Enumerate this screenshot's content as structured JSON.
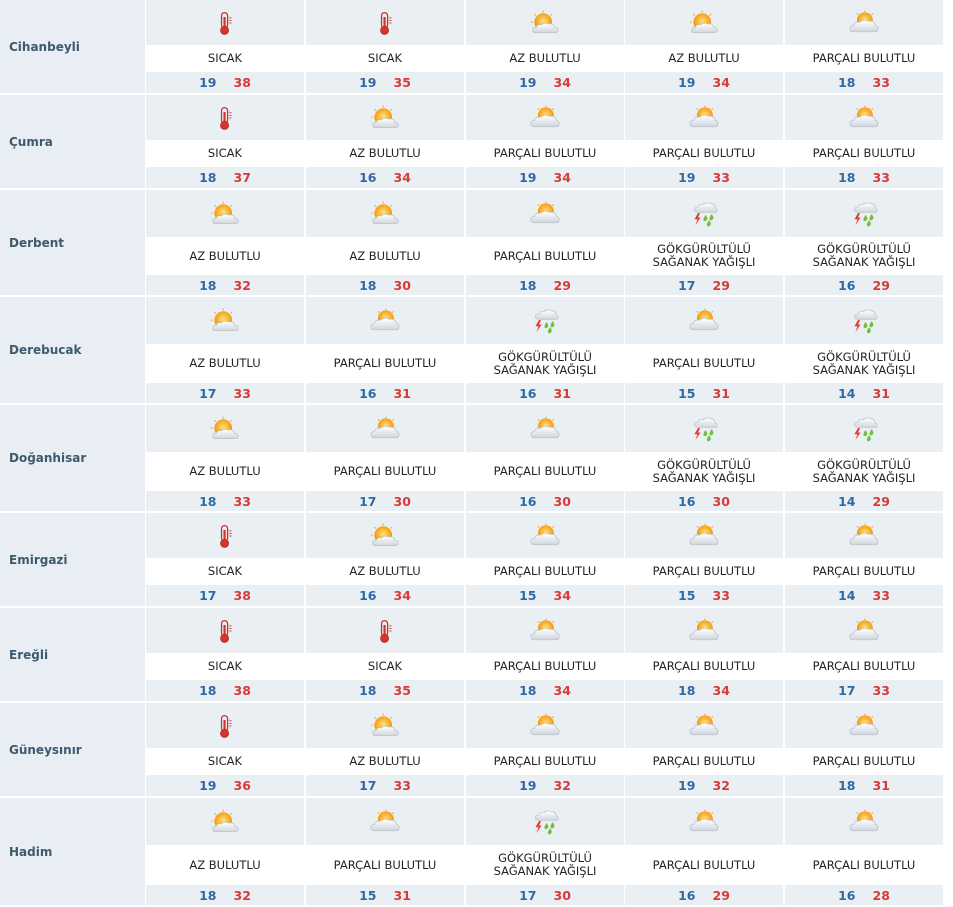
{
  "colors": {
    "cell_bg": "#eaeff3",
    "min_temp": "#2f6aa6",
    "max_temp": "#d63a3a",
    "city_text": "#3d5a6e"
  },
  "rows": [
    {
      "city": "Cihanbeyli",
      "days": [
        {
          "icon": "thermometer-hot-icon",
          "desc": "SICAK",
          "min": "19",
          "max": "38"
        },
        {
          "icon": "thermometer-hot-icon",
          "desc": "SICAK",
          "min": "19",
          "max": "35"
        },
        {
          "icon": "partly-sunny-icon",
          "desc": "AZ BULUTLU",
          "min": "19",
          "max": "34"
        },
        {
          "icon": "partly-sunny-icon",
          "desc": "AZ BULUTLU",
          "min": "19",
          "max": "34"
        },
        {
          "icon": "partly-cloudy-icon",
          "desc": "PARÇALI BULUTLU",
          "min": "18",
          "max": "33"
        }
      ]
    },
    {
      "city": "Çumra",
      "days": [
        {
          "icon": "thermometer-hot-icon",
          "desc": "SICAK",
          "min": "18",
          "max": "37"
        },
        {
          "icon": "partly-sunny-icon",
          "desc": "AZ BULUTLU",
          "min": "16",
          "max": "34"
        },
        {
          "icon": "partly-cloudy-icon",
          "desc": "PARÇALI BULUTLU",
          "min": "19",
          "max": "34"
        },
        {
          "icon": "partly-cloudy-icon",
          "desc": "PARÇALI BULUTLU",
          "min": "19",
          "max": "33"
        },
        {
          "icon": "partly-cloudy-icon",
          "desc": "PARÇALI BULUTLU",
          "min": "18",
          "max": "33"
        }
      ]
    },
    {
      "city": "Derbent",
      "days": [
        {
          "icon": "partly-sunny-icon",
          "desc": "AZ BULUTLU",
          "min": "18",
          "max": "32"
        },
        {
          "icon": "partly-sunny-icon",
          "desc": "AZ BULUTLU",
          "min": "18",
          "max": "30"
        },
        {
          "icon": "partly-cloudy-icon",
          "desc": "PARÇALI BULUTLU",
          "min": "18",
          "max": "29"
        },
        {
          "icon": "thunderstorm-icon",
          "desc": "GÖKGÜRÜLTÜLÜ SAĞANAK YAĞIŞLI",
          "min": "17",
          "max": "29"
        },
        {
          "icon": "thunderstorm-icon",
          "desc": "GÖKGÜRÜLTÜLÜ SAĞANAK YAĞIŞLI",
          "min": "16",
          "max": "29"
        }
      ]
    },
    {
      "city": "Derebucak",
      "days": [
        {
          "icon": "partly-sunny-icon",
          "desc": "AZ BULUTLU",
          "min": "17",
          "max": "33"
        },
        {
          "icon": "partly-cloudy-icon",
          "desc": "PARÇALI BULUTLU",
          "min": "16",
          "max": "31"
        },
        {
          "icon": "thunderstorm-icon",
          "desc": "GÖKGÜRÜLTÜLÜ SAĞANAK YAĞIŞLI",
          "min": "16",
          "max": "31"
        },
        {
          "icon": "partly-cloudy-icon",
          "desc": "PARÇALI BULUTLU",
          "min": "15",
          "max": "31"
        },
        {
          "icon": "thunderstorm-icon",
          "desc": "GÖKGÜRÜLTÜLÜ SAĞANAK YAĞIŞLI",
          "min": "14",
          "max": "31"
        }
      ]
    },
    {
      "city": "Doğanhisar",
      "days": [
        {
          "icon": "partly-sunny-icon",
          "desc": "AZ BULUTLU",
          "min": "18",
          "max": "33"
        },
        {
          "icon": "partly-cloudy-icon",
          "desc": "PARÇALI BULUTLU",
          "min": "17",
          "max": "30"
        },
        {
          "icon": "partly-cloudy-icon",
          "desc": "PARÇALI BULUTLU",
          "min": "16",
          "max": "30"
        },
        {
          "icon": "thunderstorm-icon",
          "desc": "GÖKGÜRÜLTÜLÜ SAĞANAK YAĞIŞLI",
          "min": "16",
          "max": "30"
        },
        {
          "icon": "thunderstorm-icon",
          "desc": "GÖKGÜRÜLTÜLÜ SAĞANAK YAĞIŞLI",
          "min": "14",
          "max": "29"
        }
      ]
    },
    {
      "city": "Emirgazi",
      "days": [
        {
          "icon": "thermometer-hot-icon",
          "desc": "SICAK",
          "min": "17",
          "max": "38"
        },
        {
          "icon": "partly-sunny-icon",
          "desc": "AZ BULUTLU",
          "min": "16",
          "max": "34"
        },
        {
          "icon": "partly-cloudy-icon",
          "desc": "PARÇALI BULUTLU",
          "min": "15",
          "max": "34"
        },
        {
          "icon": "partly-cloudy-icon",
          "desc": "PARÇALI BULUTLU",
          "min": "15",
          "max": "33"
        },
        {
          "icon": "partly-cloudy-icon",
          "desc": "PARÇALI BULUTLU",
          "min": "14",
          "max": "33"
        }
      ]
    },
    {
      "city": "Ereğli",
      "days": [
        {
          "icon": "thermometer-hot-icon",
          "desc": "SICAK",
          "min": "18",
          "max": "38"
        },
        {
          "icon": "thermometer-hot-icon",
          "desc": "SICAK",
          "min": "18",
          "max": "35"
        },
        {
          "icon": "partly-cloudy-icon",
          "desc": "PARÇALI BULUTLU",
          "min": "18",
          "max": "34"
        },
        {
          "icon": "partly-cloudy-icon",
          "desc": "PARÇALI BULUTLU",
          "min": "18",
          "max": "34"
        },
        {
          "icon": "partly-cloudy-icon",
          "desc": "PARÇALI BULUTLU",
          "min": "17",
          "max": "33"
        }
      ]
    },
    {
      "city": "Güneysınır",
      "days": [
        {
          "icon": "thermometer-hot-icon",
          "desc": "SICAK",
          "min": "19",
          "max": "36"
        },
        {
          "icon": "partly-sunny-icon",
          "desc": "AZ BULUTLU",
          "min": "17",
          "max": "33"
        },
        {
          "icon": "partly-cloudy-icon",
          "desc": "PARÇALI BULUTLU",
          "min": "19",
          "max": "32"
        },
        {
          "icon": "partly-cloudy-icon",
          "desc": "PARÇALI BULUTLU",
          "min": "19",
          "max": "32"
        },
        {
          "icon": "partly-cloudy-icon",
          "desc": "PARÇALI BULUTLU",
          "min": "18",
          "max": "31"
        }
      ]
    },
    {
      "city": "Hadim",
      "days": [
        {
          "icon": "partly-sunny-icon",
          "desc": "AZ BULUTLU",
          "min": "18",
          "max": "32"
        },
        {
          "icon": "partly-cloudy-icon",
          "desc": "PARÇALI BULUTLU",
          "min": "15",
          "max": "31"
        },
        {
          "icon": "thunderstorm-icon",
          "desc": "GÖKGÜRÜLTÜLÜ SAĞANAK YAĞIŞLI",
          "min": "17",
          "max": "30"
        },
        {
          "icon": "partly-cloudy-icon",
          "desc": "PARÇALI BULUTLU",
          "min": "16",
          "max": "29"
        },
        {
          "icon": "partly-cloudy-icon",
          "desc": "PARÇALI BULUTLU",
          "min": "16",
          "max": "28"
        }
      ]
    }
  ]
}
